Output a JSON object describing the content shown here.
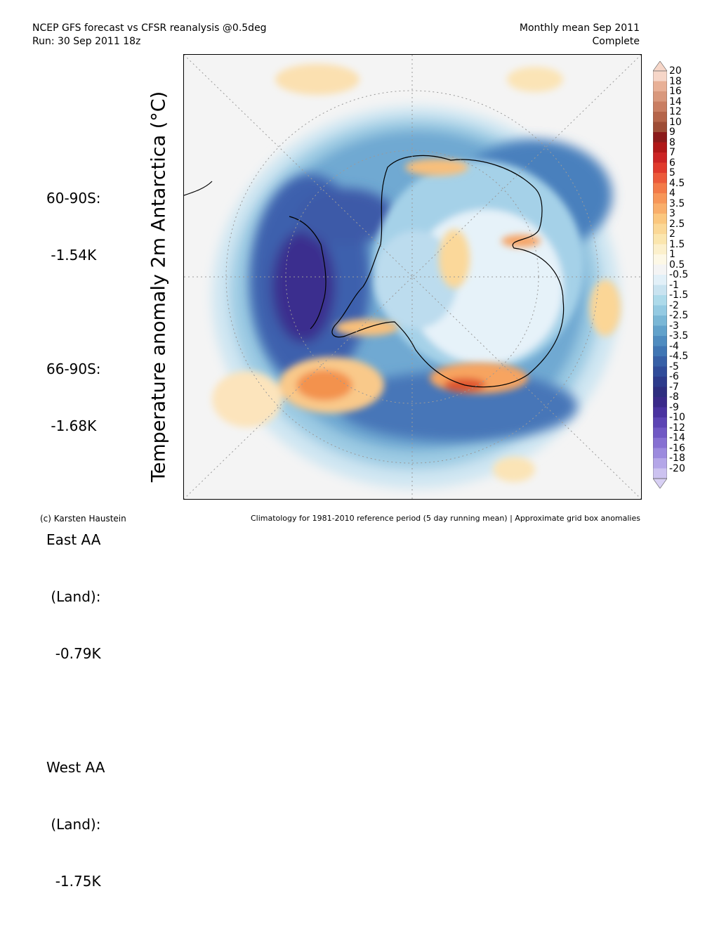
{
  "header": {
    "title_line1": "NCEP GFS forecast vs CFSR reanalysis @0.5deg",
    "title_line2": "Run: 30 Sep 2011 18z",
    "right_line1": "Monthly mean Sep 2011",
    "right_line2": "Complete"
  },
  "stats": [
    {
      "lines": [
        "60-90S:",
        " -1.54K"
      ]
    },
    {
      "lines": [
        "66-90S:",
        " -1.68K"
      ]
    },
    {
      "lines": [
        "East AA",
        " (Land):",
        "  -0.79K"
      ]
    },
    {
      "lines": [
        "West AA",
        " (Land):",
        "  -1.75K"
      ]
    }
  ],
  "map": {
    "ylabel": "Temperature anomaly 2m Antarctica (°C)",
    "projection": "south polar stereographic",
    "colors": {
      "background": "#f4f4f4",
      "coastline": "#000000",
      "grid": "#9a9a9a"
    }
  },
  "colorbar": {
    "labels": [
      "20",
      "18",
      "16",
      "14",
      "12",
      "10",
      "9",
      "8",
      "7",
      "6",
      "5",
      "4.5",
      "4",
      "3.5",
      "3",
      "2.5",
      "2",
      "1.5",
      "1",
      "0.5",
      "-0.5",
      "-1",
      "-1.5",
      "-2",
      "-2.5",
      "-3",
      "-3.5",
      "-4",
      "-4.5",
      "-5",
      "-6",
      "-7",
      "-8",
      "-9",
      "-10",
      "-12",
      "-14",
      "-16",
      "-18",
      "-20"
    ],
    "colors": [
      "#f6d6c8",
      "#e8b096",
      "#d9987c",
      "#c97e62",
      "#b5654a",
      "#9e4d36",
      "#8b1a1a",
      "#b01818",
      "#cc2424",
      "#e03a2c",
      "#ec5a3a",
      "#f37a48",
      "#f79658",
      "#f9ae6a",
      "#fbc77e",
      "#fbd896",
      "#fbe6ae",
      "#fcf0cc",
      "#fdf8e6",
      "#f4f4f4",
      "#e2f0f8",
      "#c9e3f0",
      "#addaea",
      "#94cae2",
      "#7ab7d6",
      "#62a2cb",
      "#4f8cc0",
      "#4076b4",
      "#3760a7",
      "#304c9a",
      "#2d3b8c",
      "#2e2e80",
      "#3a2a8a",
      "#4a33a0",
      "#5c44b4",
      "#7058c4",
      "#8670d2",
      "#9c8ade",
      "#b4a6e8",
      "#ccc2f0"
    ],
    "end_colors": {
      "top": "#f6d6c8",
      "bottom": "#d8d0f4"
    }
  },
  "footer": {
    "left": "(c) Karsten Haustein",
    "right": "Climatology for 1981-2010 reference period (5 day running mean) | Approximate grid box anomalies"
  }
}
